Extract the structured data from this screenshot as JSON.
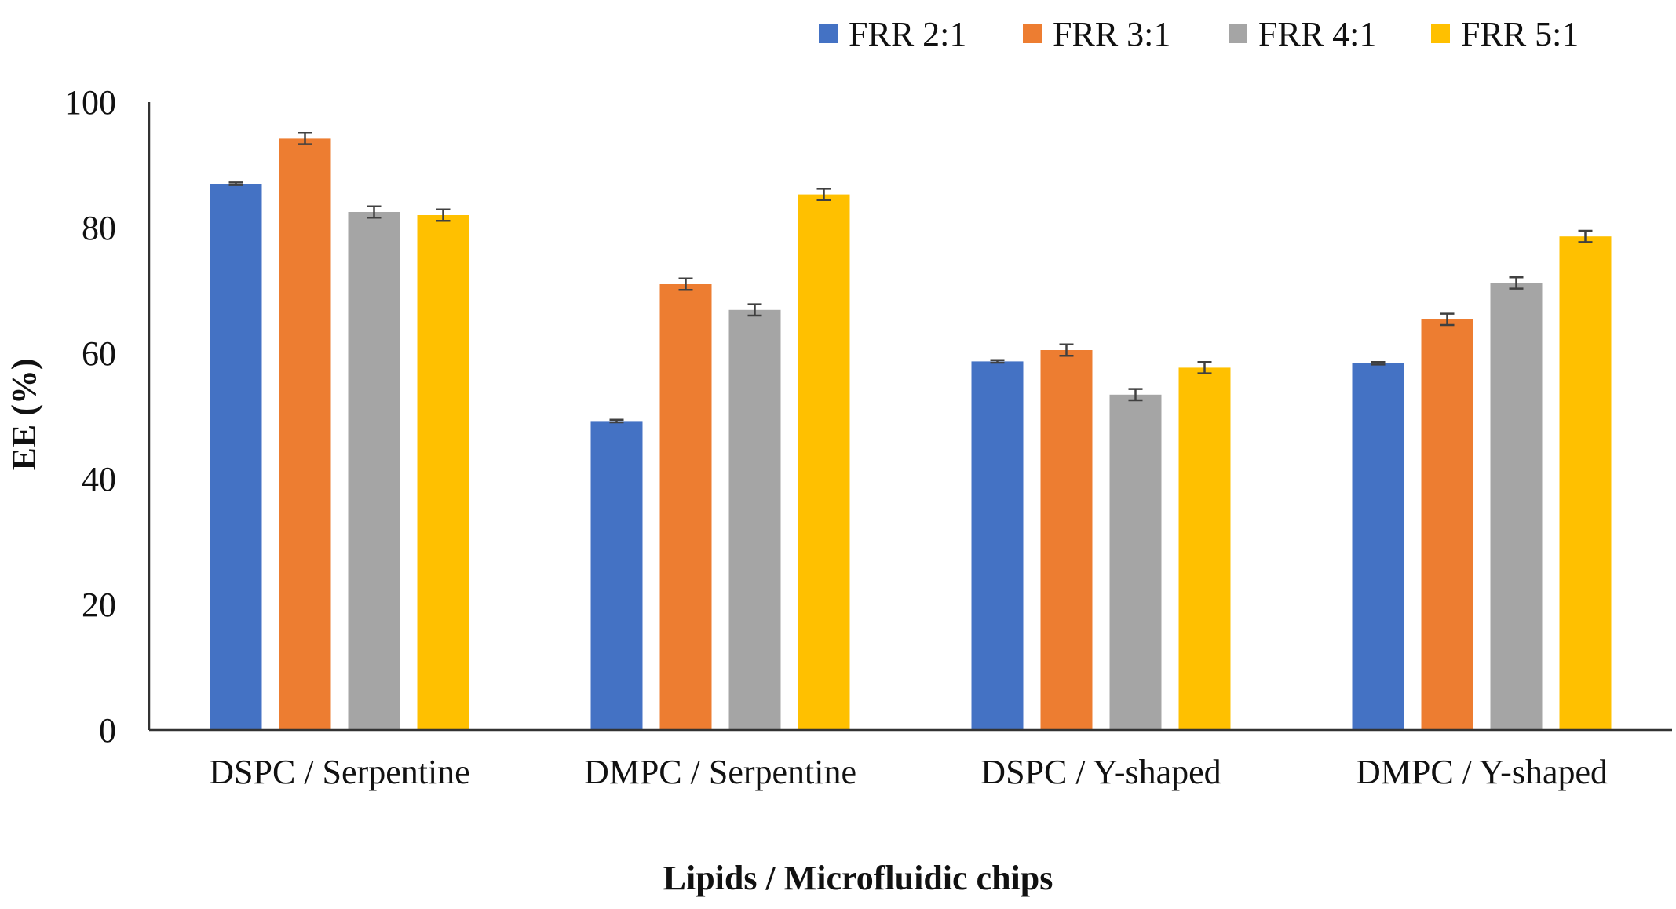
{
  "chart_data": {
    "type": "bar",
    "title": "",
    "xlabel": "Lipids / Microfluidic chips",
    "ylabel": "EE (%)",
    "ylim": [
      0,
      100
    ],
    "yticks": [
      0,
      20,
      40,
      60,
      80,
      100
    ],
    "grid": false,
    "legend_position": "top-right",
    "categories": [
      "DSPC / Serpentine",
      "DMPC / Serpentine",
      "DSPC / Y-shaped",
      "DMPC / Y-shaped"
    ],
    "series": [
      {
        "name": "FRR 2:1",
        "color": "#4472C4",
        "values": [
          87.0,
          49.2,
          58.7,
          58.4
        ],
        "errors": [
          0.2,
          0.2,
          0.2,
          0.2
        ]
      },
      {
        "name": "FRR 3:1",
        "color": "#ED7D31",
        "values": [
          94.2,
          71.0,
          60.5,
          65.4
        ],
        "errors": [
          0.9,
          0.9,
          0.9,
          0.9
        ]
      },
      {
        "name": "FRR 4:1",
        "color": "#A5A5A5",
        "values": [
          82.5,
          66.9,
          53.4,
          71.2
        ],
        "errors": [
          0.9,
          0.9,
          0.9,
          0.9
        ]
      },
      {
        "name": "FRR 5:1",
        "color": "#FFC000",
        "values": [
          82.0,
          85.3,
          57.7,
          78.6
        ],
        "errors": [
          0.9,
          0.9,
          0.9,
          0.9
        ]
      }
    ]
  }
}
